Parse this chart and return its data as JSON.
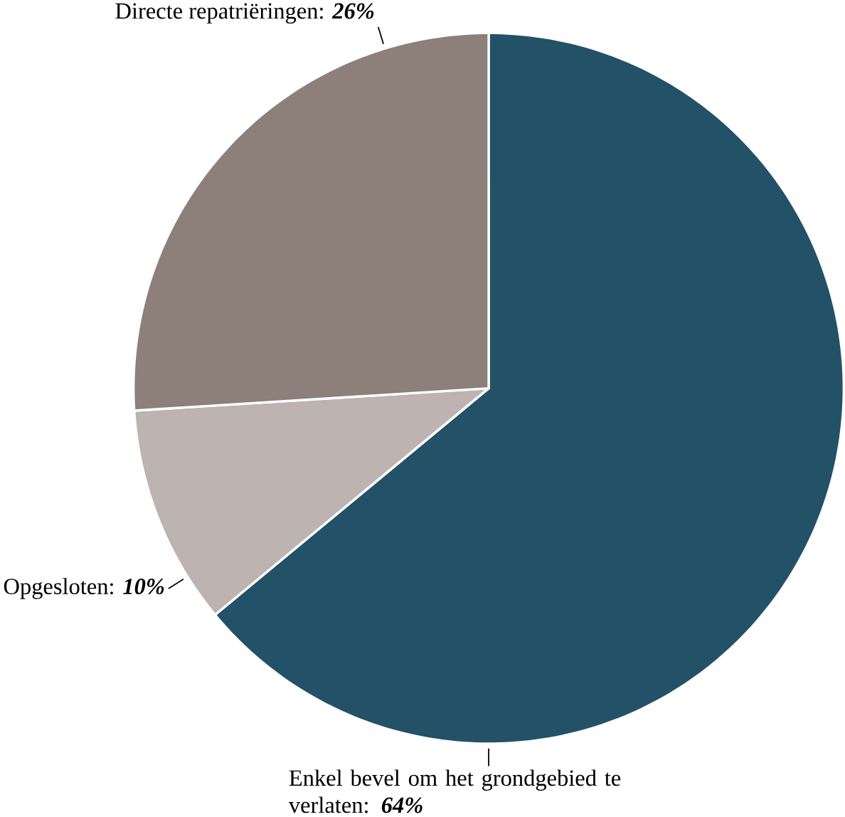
{
  "chart_data": {
    "type": "pie",
    "categories": [
      "Enkel bevel om het grondgebied te verlaten",
      "Opgesloten",
      "Directe repatriëringen"
    ],
    "values": [
      64,
      10,
      26
    ],
    "value_labels": [
      ": **64%**",
      ": **10%**",
      ": **26%**"
    ],
    "colors": [
      "#235168",
      "#bdb3b0",
      "#8d7f79"
    ],
    "data_labels": true
  }
}
